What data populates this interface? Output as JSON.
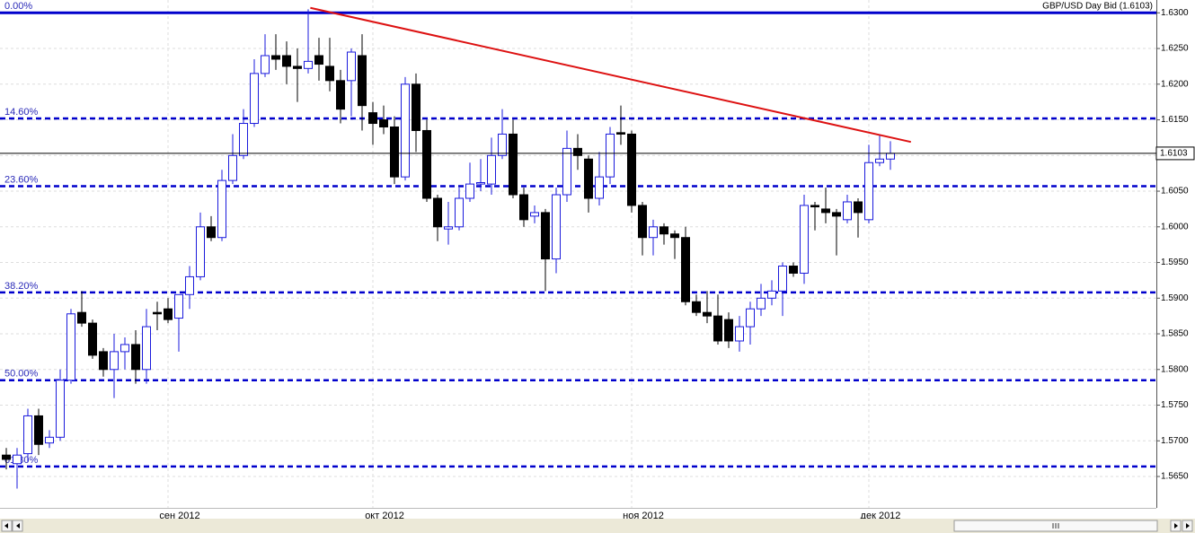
{
  "chart_data": {
    "type": "candlestick",
    "title": "GBP/USD Day Bid (1.6103)",
    "categories": [
      null,
      null,
      null,
      null,
      null,
      null,
      null,
      null,
      null,
      null,
      null,
      null,
      null,
      null,
      null,
      "сен 2012",
      null,
      null,
      null,
      null,
      null,
      null,
      null,
      null,
      null,
      null,
      null,
      null,
      null,
      null,
      null,
      null,
      null,
      null,
      "окт 2012",
      null,
      null,
      null,
      null,
      null,
      null,
      null,
      null,
      null,
      null,
      null,
      null,
      null,
      null,
      null,
      null,
      null,
      null,
      null,
      null,
      null,
      null,
      null,
      "ноя 2012",
      null,
      null,
      null,
      null,
      null,
      null,
      null,
      null,
      null,
      null,
      null,
      null,
      null,
      null,
      null,
      null,
      null,
      null,
      null,
      null,
      null,
      "дек 2012",
      null,
      null
    ],
    "open": [
      1.568,
      1.5668,
      1.5682,
      1.5735,
      1.5697,
      1.5705,
      1.5785,
      1.588,
      1.5865,
      1.5825,
      1.58,
      1.5825,
      1.5835,
      1.58,
      1.588,
      1.5885,
      1.5872,
      1.5905,
      1.593,
      1.6,
      1.5985,
      1.6065,
      1.61,
      1.6145,
      1.6215,
      1.624,
      1.624,
      1.6225,
      1.6222,
      1.624,
      1.6225,
      1.6205,
      1.6205,
      1.624,
      1.616,
      1.615,
      1.614,
      1.607,
      1.62,
      1.6135,
      1.604,
      1.5997,
      1.6,
      1.604,
      1.606,
      1.606,
      1.61,
      1.613,
      1.6045,
      1.6015,
      1.602,
      1.5955,
      1.6045,
      1.611,
      1.6095,
      1.604,
      1.607,
      1.6132,
      1.613,
      1.603,
      1.5985,
      1.6,
      1.599,
      1.5985,
      1.5895,
      1.588,
      1.5875,
      1.587,
      1.584,
      1.586,
      1.5885,
      1.59,
      1.591,
      1.5945,
      1.5935,
      1.603,
      1.6025,
      1.602,
      1.601,
      1.6035,
      1.601,
      1.609,
      1.6095
    ],
    "high": [
      1.569,
      1.569,
      1.5745,
      1.5745,
      1.5715,
      1.58,
      1.5885,
      1.591,
      1.587,
      1.583,
      1.585,
      1.5845,
      1.5855,
      1.5885,
      1.5895,
      1.59,
      1.5905,
      1.5945,
      1.602,
      1.6015,
      1.608,
      1.613,
      1.6165,
      1.6235,
      1.627,
      1.627,
      1.626,
      1.625,
      1.6305,
      1.6265,
      1.6265,
      1.622,
      1.625,
      1.627,
      1.6175,
      1.617,
      1.6155,
      1.621,
      1.6215,
      1.615,
      1.6045,
      1.6035,
      1.6055,
      1.609,
      1.6095,
      1.6125,
      1.6165,
      1.615,
      1.6055,
      1.603,
      1.6025,
      1.6055,
      1.6135,
      1.613,
      1.61,
      1.6105,
      1.614,
      1.617,
      1.6135,
      1.6035,
      1.601,
      1.6005,
      1.5995,
      1.6,
      1.5905,
      1.591,
      1.5905,
      1.588,
      1.5875,
      1.5895,
      1.592,
      1.5925,
      1.595,
      1.595,
      1.6045,
      1.6035,
      1.6055,
      1.6025,
      1.6045,
      1.604,
      1.6115,
      1.613,
      1.612
    ],
    "low": [
      1.566,
      1.5633,
      1.567,
      1.568,
      1.569,
      1.57,
      1.578,
      1.586,
      1.5815,
      1.579,
      1.576,
      1.58,
      1.578,
      1.578,
      1.5855,
      1.5865,
      1.5825,
      1.5885,
      1.5925,
      1.598,
      1.598,
      1.606,
      1.6095,
      1.614,
      1.621,
      1.622,
      1.62,
      1.6175,
      1.6215,
      1.6205,
      1.619,
      1.6145,
      1.6155,
      1.6135,
      1.6115,
      1.613,
      1.606,
      1.6065,
      1.6105,
      1.6035,
      1.598,
      1.5975,
      1.5995,
      1.6035,
      1.605,
      1.6045,
      1.6095,
      1.604,
      1.6,
      1.6005,
      1.591,
      1.5935,
      1.6035,
      1.608,
      1.602,
      1.603,
      1.606,
      1.6115,
      1.602,
      1.596,
      1.596,
      1.5975,
      1.5955,
      1.589,
      1.5875,
      1.5865,
      1.5835,
      1.583,
      1.5825,
      1.5835,
      1.5875,
      1.589,
      1.5875,
      1.593,
      1.592,
      1.5995,
      1.6005,
      1.596,
      1.6005,
      1.5985,
      1.6005,
      1.6085,
      1.608
    ],
    "close": [
      1.5674,
      1.568,
      1.5735,
      1.5695,
      1.5705,
      1.5785,
      1.5878,
      1.5865,
      1.582,
      1.58,
      1.5825,
      1.5835,
      1.58,
      1.586,
      1.5878,
      1.587,
      1.5905,
      1.593,
      1.6,
      1.5985,
      1.6065,
      1.61,
      1.6145,
      1.6215,
      1.624,
      1.6235,
      1.6225,
      1.6222,
      1.6232,
      1.6228,
      1.6205,
      1.6165,
      1.6245,
      1.617,
      1.6145,
      1.614,
      1.607,
      1.62,
      1.6135,
      1.604,
      1.6,
      1.6,
      1.604,
      1.606,
      1.6062,
      1.61,
      1.613,
      1.6045,
      1.601,
      1.602,
      1.5955,
      1.6045,
      1.611,
      1.61,
      1.604,
      1.607,
      1.613,
      1.613,
      1.603,
      1.5985,
      1.6,
      1.599,
      1.5985,
      1.5895,
      1.588,
      1.5875,
      1.584,
      1.584,
      1.586,
      1.5885,
      1.59,
      1.591,
      1.5945,
      1.5935,
      1.603,
      1.6028,
      1.602,
      1.6015,
      1.6035,
      1.602,
      1.609,
      1.6095,
      1.6103
    ],
    "up_color": "#1a1adc",
    "down_color": "#000000",
    "ylim": [
      1.5606,
      1.6318
    ],
    "yticks": [
      {
        "value": 1.565,
        "label": "1.5650"
      },
      {
        "value": 1.57,
        "label": "1.5700"
      },
      {
        "value": 1.575,
        "label": "1.5750"
      },
      {
        "value": 1.58,
        "label": "1.5800"
      },
      {
        "value": 1.585,
        "label": "1.5850"
      },
      {
        "value": 1.59,
        "label": "1.5900"
      },
      {
        "value": 1.595,
        "label": "1.5950"
      },
      {
        "value": 1.6,
        "label": "1.6000"
      },
      {
        "value": 1.605,
        "label": "1.6050"
      },
      {
        "value": 1.61,
        "label": "1.6100"
      },
      {
        "value": 1.615,
        "label": "1.6150"
      },
      {
        "value": 1.62,
        "label": "1.6200"
      },
      {
        "value": 1.625,
        "label": "1.6250"
      },
      {
        "value": 1.63,
        "label": "1.6300"
      }
    ],
    "grid": true,
    "fib_levels": [
      {
        "label": "0.00%",
        "value": 1.63
      },
      {
        "label": "14.60%",
        "value": 1.6152
      },
      {
        "label": "23.60%",
        "value": 1.6057
      },
      {
        "label": "38.20%",
        "value": 1.5908
      },
      {
        "label": "50.00%",
        "value": 1.5785
      },
      {
        "label": "61.80%",
        "value": 1.5664
      }
    ],
    "fib_color": "#0000cc",
    "last_price": {
      "value": 1.6103,
      "label": "1.6103"
    },
    "trendline": {
      "x": [
        28.2,
        83.9
      ],
      "y": [
        1.6307,
        1.6119
      ],
      "color": "#dd1111"
    }
  }
}
